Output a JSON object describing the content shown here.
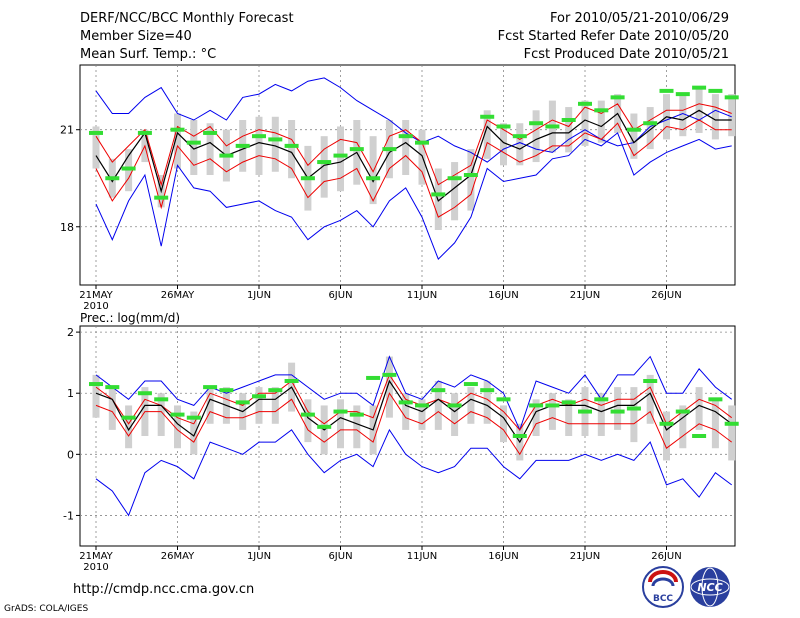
{
  "header": {
    "title": "DERF/NCC/BCC Monthly Forecast",
    "member_size": "Member Size=40",
    "variable": "Mean Surf. Temp.: °C",
    "period": "For 2010/05/21-2010/06/29",
    "refer_date": "Fcst Started Refer Date 2010/05/20",
    "produced_date": "Fcst Produced Date 2010/05/21"
  },
  "footer": {
    "url": "http://cmdp.ncc.cma.gov.cn",
    "credit": "GrADS: COLA/IGES",
    "logo_bcc": "BCC",
    "logo_ncc": "NCC"
  },
  "colors": {
    "envelope": "#0000ee",
    "spread": "#ee0000",
    "mean": "#000000",
    "member_box": "#d0d0d0",
    "median": "#33dd33",
    "grid": "#888888"
  },
  "chart_data": [
    {
      "type": "line",
      "title": "Mean Surf. Temp.: °C",
      "xlabel": "",
      "ylabel": "°C",
      "x_ticks": [
        "21MAY",
        "26MAY",
        "1JUN",
        "6JUN",
        "11JUN",
        "16JUN",
        "21JUN",
        "26JUN"
      ],
      "x_year": "2010",
      "y_ticks": [
        18,
        21
      ],
      "ylim": [
        16.2,
        23.0
      ],
      "days": 40,
      "series": [
        {
          "name": "max",
          "values": [
            22.2,
            21.5,
            21.5,
            22.0,
            22.3,
            21.5,
            21.3,
            21.6,
            21.3,
            22.0,
            22.1,
            22.4,
            22.2,
            22.5,
            22.6,
            22.3,
            21.9,
            21.6,
            21.3,
            20.9,
            20.6,
            20.8,
            20.5,
            20.3,
            20.0,
            20.4,
            20.6,
            20.4,
            20.3,
            20.7,
            21.0,
            20.7,
            20.5,
            20.6,
            21.1,
            21.3,
            21.5,
            21.3,
            21.6,
            21.4
          ]
        },
        {
          "name": "upper",
          "values": [
            20.8,
            20.0,
            20.5,
            21.0,
            19.3,
            21.1,
            20.8,
            21.1,
            20.5,
            20.8,
            21.0,
            20.9,
            20.7,
            19.9,
            20.4,
            20.7,
            20.6,
            19.7,
            20.8,
            21.0,
            20.6,
            19.3,
            19.6,
            19.9,
            21.3,
            21.0,
            20.7,
            21.0,
            21.3,
            21.1,
            21.7,
            21.5,
            21.8,
            21.0,
            21.3,
            21.6,
            21.6,
            21.8,
            21.7,
            21.5
          ]
        },
        {
          "name": "mean",
          "values": [
            20.2,
            19.4,
            20.2,
            20.9,
            19.1,
            20.9,
            20.4,
            20.6,
            20.2,
            20.4,
            20.6,
            20.5,
            20.3,
            19.5,
            19.9,
            20.0,
            20.3,
            19.4,
            20.3,
            20.6,
            20.2,
            18.8,
            19.2,
            19.6,
            21.1,
            20.6,
            20.4,
            20.7,
            20.9,
            20.9,
            21.3,
            21.1,
            21.5,
            20.6,
            21.0,
            21.4,
            21.3,
            21.6,
            21.3,
            21.3
          ]
        },
        {
          "name": "lower",
          "values": [
            19.8,
            18.8,
            19.5,
            20.5,
            18.6,
            20.5,
            19.9,
            20.1,
            19.7,
            20.0,
            20.2,
            20.1,
            19.8,
            18.9,
            19.4,
            19.5,
            19.8,
            18.8,
            19.8,
            20.2,
            19.7,
            18.3,
            18.6,
            19.0,
            20.6,
            20.3,
            20.0,
            20.2,
            20.5,
            20.5,
            20.9,
            20.7,
            21.2,
            20.2,
            20.6,
            21.1,
            21.0,
            21.3,
            21.0,
            21.0
          ]
        },
        {
          "name": "min",
          "values": [
            18.7,
            17.6,
            18.8,
            19.6,
            17.4,
            19.9,
            19.2,
            19.1,
            18.6,
            18.7,
            18.8,
            18.5,
            18.3,
            17.6,
            18.0,
            18.2,
            18.5,
            18.0,
            18.8,
            19.2,
            18.3,
            17.0,
            17.5,
            18.3,
            19.8,
            19.4,
            19.5,
            19.6,
            20.1,
            20.2,
            20.7,
            20.5,
            20.9,
            19.6,
            20.0,
            20.3,
            20.5,
            20.7,
            20.4,
            20.5
          ]
        },
        {
          "name": "box_high",
          "values": [
            21.1,
            20.1,
            20.4,
            21.0,
            19.6,
            21.5,
            21.3,
            21.2,
            21.0,
            21.3,
            21.4,
            21.4,
            21.3,
            20.5,
            20.8,
            21.1,
            21.3,
            20.8,
            21.3,
            21.3,
            21.0,
            19.8,
            20.0,
            20.4,
            21.6,
            21.2,
            21.2,
            21.6,
            21.9,
            21.7,
            21.9,
            21.9,
            22.1,
            21.5,
            21.7,
            22.1,
            22.1,
            22.3,
            22.1,
            22.1
          ]
        },
        {
          "name": "box_low",
          "values": [
            19.8,
            18.9,
            19.1,
            20.0,
            18.6,
            19.8,
            19.6,
            19.6,
            19.4,
            19.7,
            19.6,
            19.7,
            19.5,
            18.5,
            18.9,
            19.1,
            19.3,
            18.7,
            19.5,
            19.6,
            19.3,
            17.9,
            18.2,
            18.5,
            20.1,
            19.9,
            19.9,
            20.0,
            20.3,
            20.3,
            20.5,
            20.6,
            20.9,
            20.1,
            20.4,
            20.7,
            20.8,
            20.9,
            20.7,
            20.8
          ]
        },
        {
          "name": "median",
          "values": [
            20.9,
            19.5,
            19.8,
            20.9,
            18.9,
            21.0,
            20.6,
            20.9,
            20.2,
            20.5,
            20.8,
            20.7,
            20.5,
            19.5,
            20.0,
            20.2,
            20.4,
            19.5,
            20.4,
            20.8,
            20.6,
            19.0,
            19.5,
            19.6,
            21.4,
            21.1,
            20.8,
            21.2,
            21.1,
            21.3,
            21.8,
            21.6,
            22.0,
            21.0,
            21.2,
            22.2,
            22.1,
            22.3,
            22.2,
            22.0
          ]
        }
      ]
    },
    {
      "type": "line",
      "title": "Prec.: log(mm/d)",
      "xlabel": "",
      "ylabel": "log(mm/d)",
      "x_ticks": [
        "21MAY",
        "26MAY",
        "1JUN",
        "6JUN",
        "11JUN",
        "16JUN",
        "21JUN",
        "26JUN"
      ],
      "x_year": "2010",
      "y_ticks": [
        -1,
        0,
        1,
        2
      ],
      "ylim": [
        -1.5,
        2.1
      ],
      "days": 40,
      "series": [
        {
          "name": "max",
          "values": [
            1.3,
            1.1,
            0.9,
            1.2,
            1.2,
            0.9,
            0.8,
            1.1,
            1.0,
            1.1,
            1.2,
            1.3,
            1.3,
            1.1,
            0.9,
            1.0,
            1.0,
            0.8,
            1.6,
            1.0,
            0.9,
            1.2,
            1.1,
            1.3,
            1.2,
            1.0,
            0.4,
            1.2,
            1.1,
            1.0,
            1.3,
            0.9,
            1.3,
            1.3,
            1.6,
            1.0,
            1.0,
            1.4,
            1.1,
            0.9
          ]
        },
        {
          "name": "upper",
          "values": [
            1.1,
            0.9,
            0.5,
            0.9,
            0.8,
            0.6,
            0.5,
            1.0,
            0.9,
            0.8,
            1.0,
            1.0,
            1.2,
            0.7,
            0.5,
            0.7,
            0.7,
            0.6,
            1.3,
            0.9,
            0.8,
            0.9,
            0.8,
            1.0,
            0.9,
            0.7,
            0.4,
            0.8,
            0.9,
            0.8,
            0.9,
            0.8,
            0.9,
            0.9,
            1.1,
            0.5,
            0.7,
            0.9,
            0.8,
            0.6
          ]
        },
        {
          "name": "mean",
          "values": [
            1.0,
            0.9,
            0.4,
            0.8,
            0.8,
            0.5,
            0.3,
            0.9,
            0.8,
            0.7,
            0.9,
            0.9,
            1.1,
            0.6,
            0.4,
            0.6,
            0.5,
            0.4,
            1.2,
            0.8,
            0.7,
            0.9,
            0.7,
            0.9,
            0.8,
            0.6,
            0.2,
            0.7,
            0.8,
            0.8,
            0.8,
            0.7,
            0.8,
            0.8,
            1.0,
            0.4,
            0.6,
            0.8,
            0.7,
            0.5
          ]
        },
        {
          "name": "lower",
          "values": [
            0.8,
            0.7,
            0.3,
            0.7,
            0.7,
            0.4,
            0.2,
            0.7,
            0.6,
            0.6,
            0.7,
            0.7,
            0.9,
            0.4,
            0.2,
            0.4,
            0.4,
            0.2,
            1.0,
            0.6,
            0.5,
            0.7,
            0.5,
            0.7,
            0.6,
            0.4,
            0.0,
            0.5,
            0.6,
            0.5,
            0.5,
            0.5,
            0.5,
            0.5,
            0.7,
            0.1,
            0.3,
            0.5,
            0.4,
            0.2
          ]
        },
        {
          "name": "min",
          "values": [
            -0.4,
            -0.6,
            -1.0,
            -0.3,
            -0.1,
            -0.2,
            -0.4,
            0.2,
            0.1,
            0.0,
            0.2,
            0.2,
            0.4,
            0.0,
            -0.3,
            -0.1,
            0.0,
            -0.2,
            0.4,
            0.0,
            -0.2,
            -0.3,
            -0.2,
            0.1,
            0.1,
            -0.2,
            -0.4,
            -0.1,
            -0.1,
            -0.1,
            0.0,
            -0.1,
            0.0,
            -0.1,
            0.2,
            -0.5,
            -0.4,
            -0.7,
            -0.3,
            -0.5
          ]
        },
        {
          "name": "box_high",
          "values": [
            1.3,
            1.1,
            0.8,
            1.1,
            1.0,
            0.8,
            0.7,
            1.1,
            1.1,
            1.0,
            1.1,
            1.1,
            1.5,
            0.9,
            0.8,
            0.9,
            0.8,
            0.8,
            1.6,
            1.0,
            0.9,
            1.2,
            1.0,
            1.1,
            1.2,
            0.8,
            0.5,
            0.9,
            1.0,
            0.9,
            1.1,
            1.0,
            1.1,
            1.1,
            1.3,
            0.7,
            0.8,
            1.1,
            0.9,
            0.8
          ]
        },
        {
          "name": "box_low",
          "values": [
            0.6,
            0.4,
            0.1,
            0.3,
            0.3,
            0.1,
            0.0,
            0.5,
            0.5,
            0.4,
            0.5,
            0.5,
            0.7,
            0.2,
            0.0,
            0.1,
            0.1,
            0.0,
            0.6,
            0.4,
            0.4,
            0.4,
            0.3,
            0.5,
            0.5,
            0.2,
            -0.1,
            0.3,
            0.4,
            0.3,
            0.3,
            0.3,
            0.4,
            0.2,
            0.5,
            -0.1,
            0.1,
            0.4,
            0.1,
            -0.1
          ]
        },
        {
          "name": "median",
          "values": [
            1.15,
            1.1,
            0.6,
            1.0,
            0.9,
            0.65,
            0.6,
            1.1,
            1.05,
            0.85,
            0.95,
            1.05,
            1.2,
            0.65,
            0.45,
            0.7,
            0.65,
            1.25,
            1.3,
            0.85,
            0.8,
            1.05,
            0.8,
            1.15,
            1.05,
            0.9,
            0.3,
            0.8,
            0.8,
            0.85,
            0.7,
            0.9,
            0.7,
            0.75,
            1.2,
            0.5,
            0.7,
            0.3,
            0.9,
            0.5
          ]
        }
      ]
    }
  ]
}
